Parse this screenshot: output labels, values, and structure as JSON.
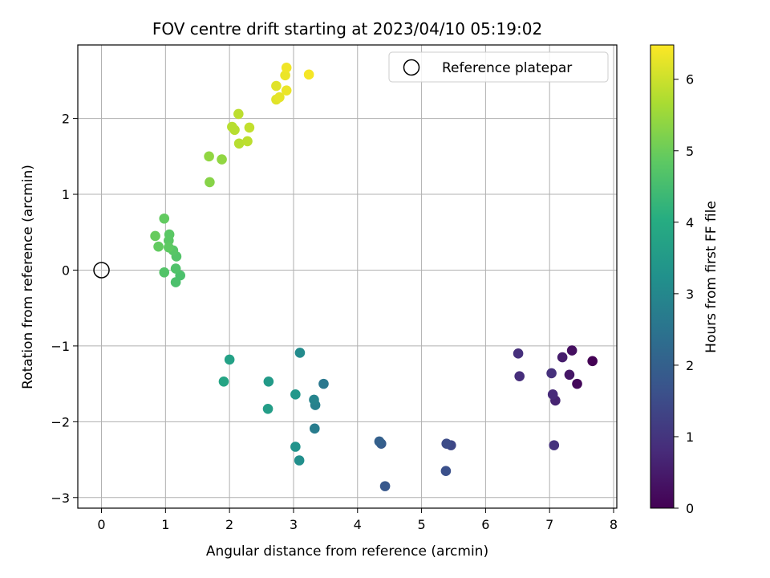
{
  "chart_data": {
    "type": "scatter",
    "title": "FOV centre drift starting at 2023/04/10 05:19:02",
    "xlabel": "Angular distance from reference (arcmin)",
    "ylabel": "Rotation from reference (arcmin)",
    "xlim": [
      -0.37,
      8.05
    ],
    "ylim": [
      -3.14,
      2.97
    ],
    "xticks": [
      0,
      1,
      2,
      3,
      4,
      5,
      6,
      7,
      8
    ],
    "yticks": [
      -3,
      -2,
      -1,
      0,
      1,
      2
    ],
    "xtick_labels": [
      "0",
      "1",
      "2",
      "3",
      "4",
      "5",
      "6",
      "7",
      "8"
    ],
    "ytick_labels": [
      "−3",
      "−2",
      "−1",
      "0",
      "1",
      "2"
    ],
    "grid": true,
    "legend": {
      "position": "top-right",
      "entries": [
        "Reference platepar"
      ]
    },
    "reference_point": {
      "x": 0,
      "y": 0,
      "label": "Reference platepar"
    },
    "colorbar": {
      "label": "Hours from first FF file",
      "colormap": "viridis",
      "range": [
        0,
        6.48
      ],
      "ticks": [
        0,
        1,
        2,
        3,
        4,
        5,
        6
      ],
      "tick_labels": [
        "0",
        "1",
        "2",
        "3",
        "4",
        "5",
        "6"
      ]
    },
    "points": [
      {
        "x": 7.67,
        "y": -1.2,
        "c": 0.0
      },
      {
        "x": 7.43,
        "y": -1.5,
        "c": 0.13
      },
      {
        "x": 7.35,
        "y": -1.06,
        "c": 0.26
      },
      {
        "x": 7.31,
        "y": -1.38,
        "c": 0.39
      },
      {
        "x": 7.2,
        "y": -1.15,
        "c": 0.52
      },
      {
        "x": 7.09,
        "y": -1.72,
        "c": 0.65
      },
      {
        "x": 7.05,
        "y": -1.64,
        "c": 0.78
      },
      {
        "x": 7.03,
        "y": -1.36,
        "c": 0.91
      },
      {
        "x": 7.07,
        "y": -2.31,
        "c": 0.95
      },
      {
        "x": 6.53,
        "y": -1.4,
        "c": 0.85
      },
      {
        "x": 6.51,
        "y": -1.1,
        "c": 0.9
      },
      {
        "x": 5.46,
        "y": -2.31,
        "c": 1.4
      },
      {
        "x": 5.39,
        "y": -2.29,
        "c": 1.5
      },
      {
        "x": 5.38,
        "y": -2.65,
        "c": 1.6
      },
      {
        "x": 4.43,
        "y": -2.85,
        "c": 1.8
      },
      {
        "x": 4.37,
        "y": -2.29,
        "c": 1.9
      },
      {
        "x": 4.34,
        "y": -2.26,
        "c": 2.0
      },
      {
        "x": 3.47,
        "y": -1.5,
        "c": 2.6
      },
      {
        "x": 3.34,
        "y": -1.78,
        "c": 2.8
      },
      {
        "x": 3.32,
        "y": -1.71,
        "c": 2.9
      },
      {
        "x": 3.33,
        "y": -2.09,
        "c": 2.7
      },
      {
        "x": 3.1,
        "y": -1.09,
        "c": 3.1
      },
      {
        "x": 3.09,
        "y": -2.51,
        "c": 3.2
      },
      {
        "x": 3.03,
        "y": -2.33,
        "c": 3.3
      },
      {
        "x": 3.03,
        "y": -1.64,
        "c": 3.4
      },
      {
        "x": 2.61,
        "y": -1.47,
        "c": 3.5
      },
      {
        "x": 2.6,
        "y": -1.83,
        "c": 3.6
      },
      {
        "x": 2.0,
        "y": -1.18,
        "c": 3.7
      },
      {
        "x": 1.91,
        "y": -1.47,
        "c": 3.8
      },
      {
        "x": 1.23,
        "y": -0.07,
        "c": 4.6
      },
      {
        "x": 1.17,
        "y": 0.18,
        "c": 4.7
      },
      {
        "x": 1.16,
        "y": 0.02,
        "c": 4.65
      },
      {
        "x": 1.16,
        "y": -0.16,
        "c": 4.6
      },
      {
        "x": 1.12,
        "y": 0.26,
        "c": 4.75
      },
      {
        "x": 1.06,
        "y": 0.47,
        "c": 4.8
      },
      {
        "x": 1.05,
        "y": 0.39,
        "c": 4.8
      },
      {
        "x": 1.05,
        "y": 0.3,
        "c": 4.85
      },
      {
        "x": 0.98,
        "y": 0.68,
        "c": 4.9
      },
      {
        "x": 0.98,
        "y": -0.03,
        "c": 4.7
      },
      {
        "x": 0.89,
        "y": 0.31,
        "c": 4.9
      },
      {
        "x": 0.84,
        "y": 0.45,
        "c": 4.95
      },
      {
        "x": 1.69,
        "y": 1.16,
        "c": 5.3
      },
      {
        "x": 1.68,
        "y": 1.5,
        "c": 5.4
      },
      {
        "x": 1.88,
        "y": 1.46,
        "c": 5.4
      },
      {
        "x": 2.04,
        "y": 1.89,
        "c": 5.8
      },
      {
        "x": 2.08,
        "y": 1.85,
        "c": 5.8
      },
      {
        "x": 2.14,
        "y": 2.06,
        "c": 5.85
      },
      {
        "x": 2.15,
        "y": 1.67,
        "c": 5.8
      },
      {
        "x": 2.28,
        "y": 1.7,
        "c": 5.85
      },
      {
        "x": 2.31,
        "y": 1.88,
        "c": 5.9
      },
      {
        "x": 2.73,
        "y": 2.43,
        "c": 6.2
      },
      {
        "x": 2.73,
        "y": 2.25,
        "c": 6.2
      },
      {
        "x": 2.78,
        "y": 2.28,
        "c": 6.25
      },
      {
        "x": 2.87,
        "y": 2.57,
        "c": 6.3
      },
      {
        "x": 2.89,
        "y": 2.67,
        "c": 6.35
      },
      {
        "x": 2.89,
        "y": 2.37,
        "c": 6.3
      },
      {
        "x": 3.24,
        "y": 2.58,
        "c": 6.4
      }
    ]
  }
}
